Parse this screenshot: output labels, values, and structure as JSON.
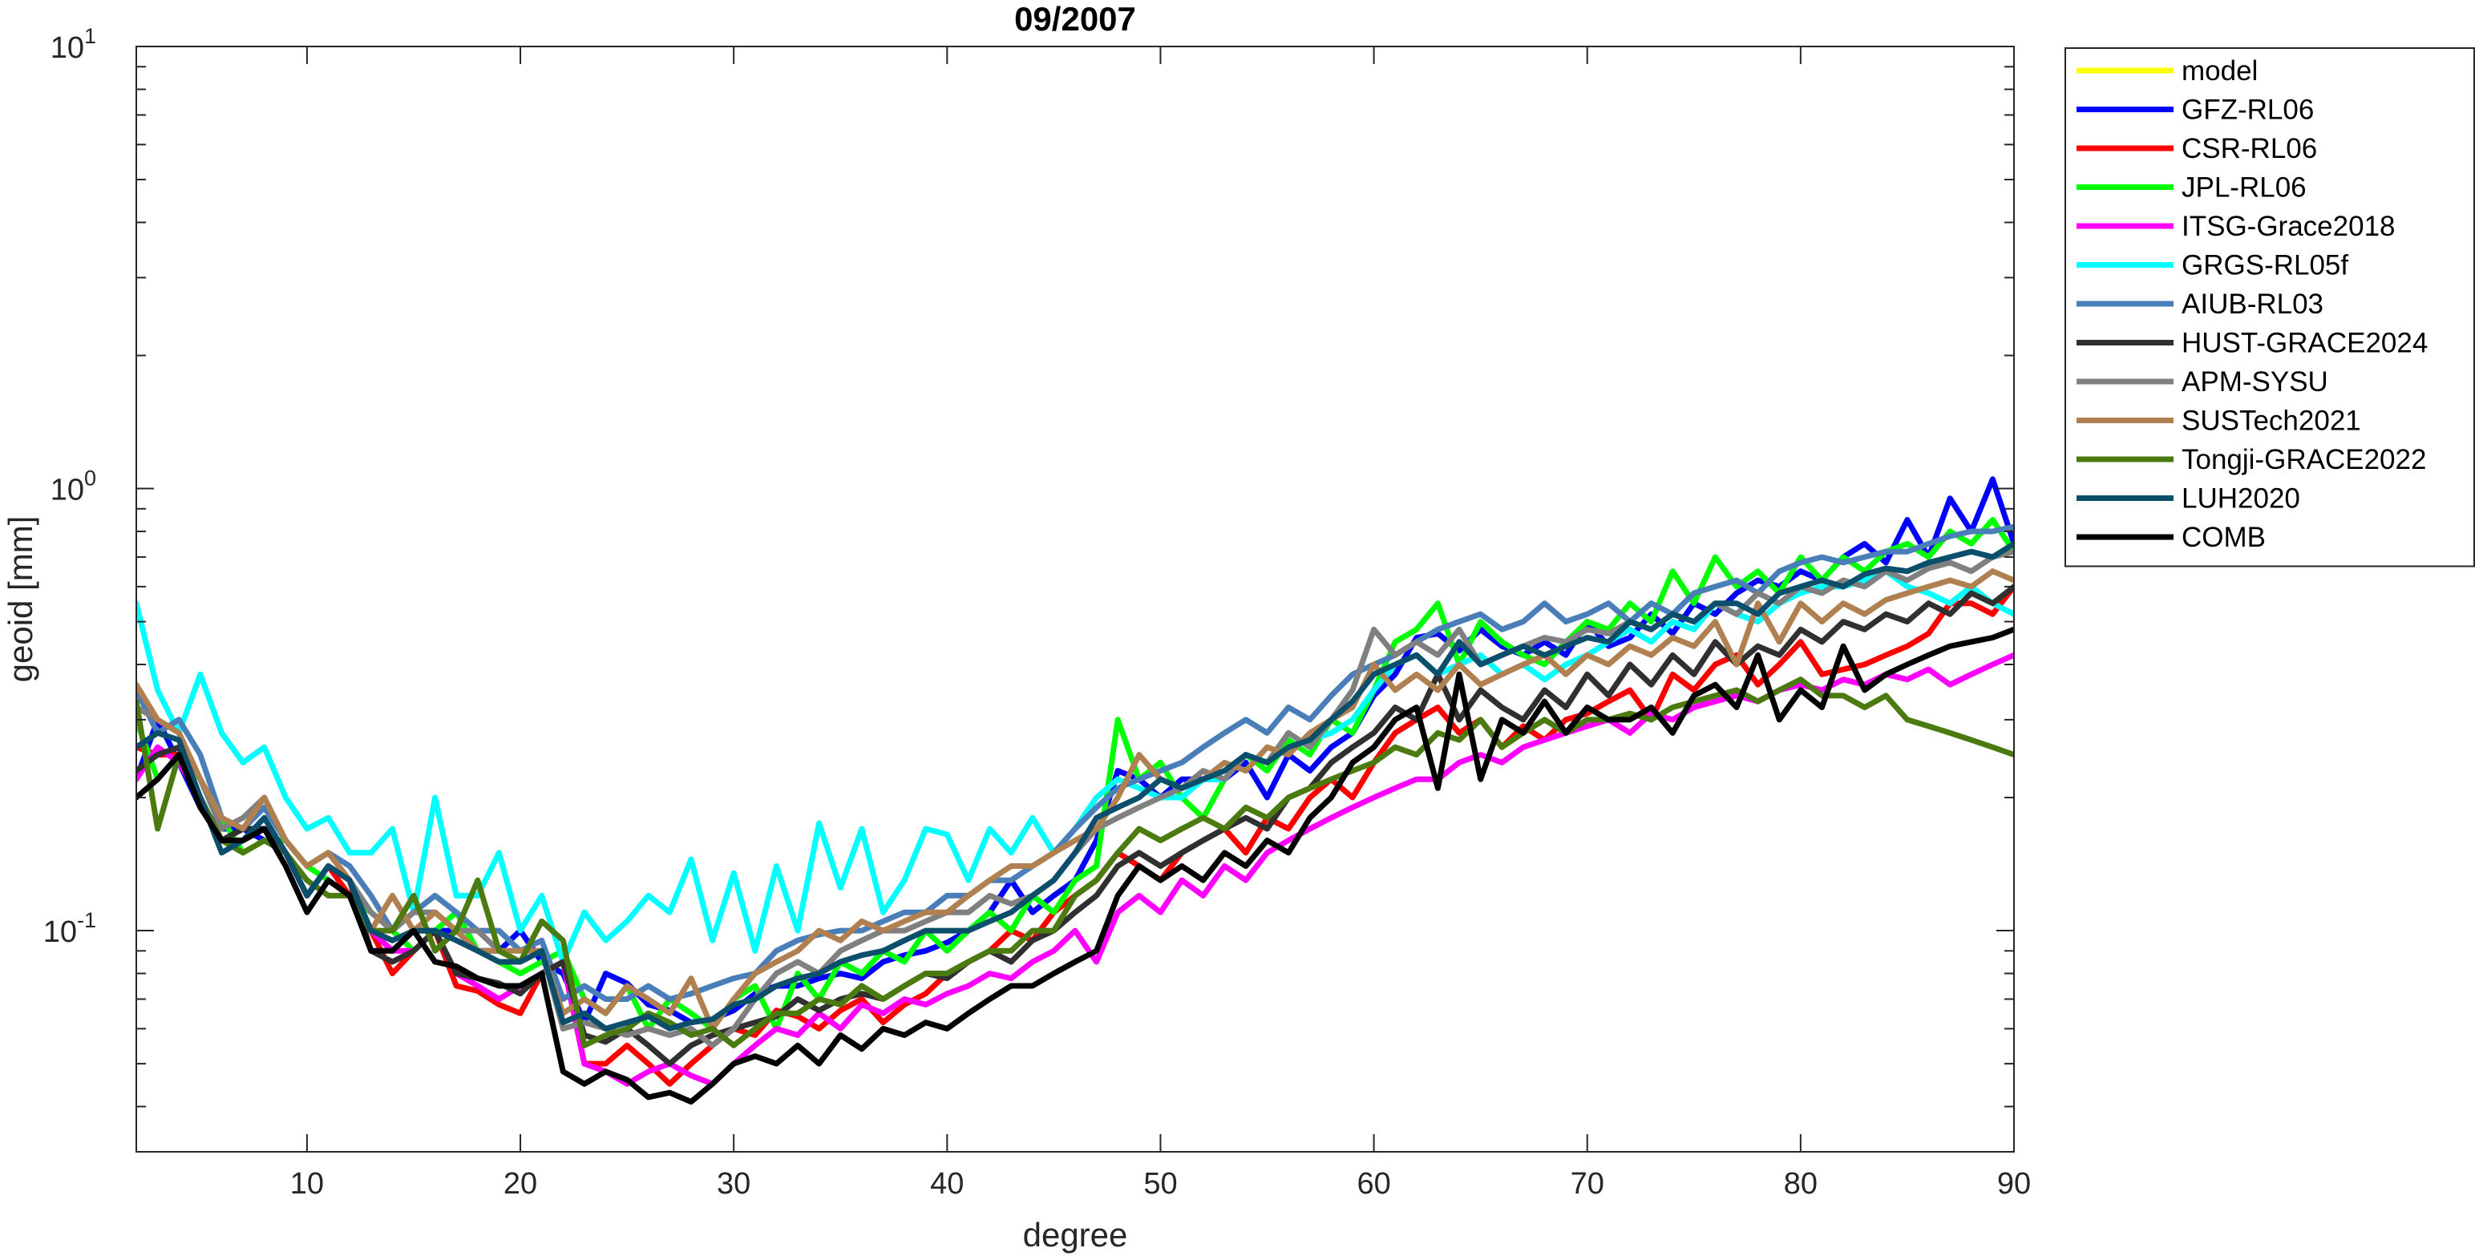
{
  "chart_data": {
    "type": "line",
    "title": "09/2007",
    "xlabel": "degree",
    "ylabel": "geoid [mm]",
    "xlim": [
      2,
      90
    ],
    "ylim": [
      0.0316,
      10
    ],
    "yscale": "log",
    "xticks": [
      10,
      20,
      30,
      40,
      50,
      60,
      70,
      80,
      90
    ],
    "yticks": [
      {
        "value": 0.1,
        "base": "10",
        "exp": "-1"
      },
      {
        "value": 1,
        "base": "10",
        "exp": "0"
      },
      {
        "value": 10,
        "base": "10",
        "exp": "1"
      }
    ],
    "grid": false,
    "legend_position": "outside-right-top",
    "x_start": 2,
    "series": [
      {
        "name": "model",
        "color": "#ffff00",
        "values": []
      },
      {
        "name": "GFZ-RL06",
        "color": "#0000ff",
        "values": [
          0.22,
          0.3,
          0.24,
          0.19,
          0.17,
          0.17,
          0.16,
          0.15,
          0.12,
          0.14,
          0.13,
          0.1,
          0.09,
          0.1,
          0.1,
          0.1,
          0.09,
          0.09,
          0.1,
          0.085,
          0.08,
          0.062,
          0.08,
          0.076,
          0.068,
          0.066,
          0.062,
          0.063,
          0.066,
          0.072,
          0.075,
          0.075,
          0.078,
          0.08,
          0.078,
          0.085,
          0.088,
          0.09,
          0.094,
          0.1,
          0.11,
          0.13,
          0.11,
          0.12,
          0.13,
          0.16,
          0.23,
          0.22,
          0.2,
          0.22,
          0.22,
          0.22,
          0.24,
          0.2,
          0.25,
          0.23,
          0.26,
          0.28,
          0.34,
          0.38,
          0.46,
          0.47,
          0.43,
          0.48,
          0.44,
          0.42,
          0.45,
          0.42,
          0.5,
          0.44,
          0.46,
          0.52,
          0.47,
          0.55,
          0.52,
          0.58,
          0.62,
          0.6,
          0.65,
          0.62,
          0.7,
          0.75,
          0.68,
          0.85,
          0.7,
          0.95,
          0.8,
          1.05,
          0.75,
          1.05,
          0.72
        ]
      },
      {
        "name": "CSR-RL06",
        "color": "#ff0000",
        "values": [
          0.26,
          0.25,
          0.25,
          0.2,
          0.16,
          0.16,
          0.17,
          0.15,
          0.12,
          0.14,
          0.12,
          0.1,
          0.08,
          0.09,
          0.1,
          0.075,
          0.073,
          0.068,
          0.065,
          0.08,
          0.085,
          0.05,
          0.05,
          0.055,
          0.05,
          0.045,
          0.05,
          0.055,
          0.06,
          0.058,
          0.066,
          0.064,
          0.06,
          0.066,
          0.07,
          0.062,
          0.068,
          0.072,
          0.08,
          0.085,
          0.09,
          0.1,
          0.095,
          0.11,
          0.12,
          0.13,
          0.15,
          0.14,
          0.13,
          0.15,
          0.16,
          0.17,
          0.15,
          0.18,
          0.17,
          0.2,
          0.22,
          0.2,
          0.24,
          0.28,
          0.3,
          0.32,
          0.28,
          0.3,
          0.26,
          0.29,
          0.27,
          0.3,
          0.31,
          0.33,
          0.35,
          0.3,
          0.38,
          0.35,
          0.4,
          0.42,
          0.36,
          0.4,
          0.45,
          0.38,
          0.39,
          0.4,
          0.42,
          0.44,
          0.47,
          0.55,
          0.55,
          0.52,
          0.6,
          0.62,
          0.7
        ]
      },
      {
        "name": "JPL-RL06",
        "color": "#00ff00",
        "values": [
          0.3,
          0.22,
          0.25,
          0.22,
          0.18,
          0.15,
          0.16,
          0.16,
          0.14,
          0.13,
          0.12,
          0.11,
          0.1,
          0.09,
          0.1,
          0.11,
          0.09,
          0.085,
          0.08,
          0.085,
          0.09,
          0.07,
          0.065,
          0.075,
          0.06,
          0.07,
          0.065,
          0.06,
          0.07,
          0.075,
          0.06,
          0.08,
          0.07,
          0.085,
          0.08,
          0.09,
          0.085,
          0.1,
          0.09,
          0.1,
          0.11,
          0.1,
          0.12,
          0.11,
          0.13,
          0.14,
          0.3,
          0.22,
          0.24,
          0.2,
          0.18,
          0.22,
          0.25,
          0.23,
          0.27,
          0.25,
          0.3,
          0.28,
          0.35,
          0.45,
          0.48,
          0.55,
          0.4,
          0.5,
          0.45,
          0.42,
          0.4,
          0.45,
          0.5,
          0.48,
          0.55,
          0.5,
          0.65,
          0.55,
          0.7,
          0.6,
          0.65,
          0.58,
          0.7,
          0.62,
          0.7,
          0.65,
          0.72,
          0.75,
          0.7,
          0.8,
          0.75,
          0.85,
          0.72,
          0.82,
          0.85
        ]
      },
      {
        "name": "ITSG-Grace2018",
        "color": "#ff00ff",
        "values": [
          0.22,
          0.26,
          0.24,
          0.2,
          0.16,
          0.17,
          0.17,
          0.15,
          0.12,
          0.14,
          0.13,
          0.1,
          0.09,
          0.09,
          0.1,
          0.08,
          0.075,
          0.07,
          0.075,
          0.08,
          0.085,
          0.05,
          0.048,
          0.045,
          0.048,
          0.05,
          0.047,
          0.045,
          0.05,
          0.055,
          0.06,
          0.058,
          0.065,
          0.06,
          0.068,
          0.065,
          0.07,
          0.068,
          0.072,
          0.075,
          0.08,
          0.078,
          0.085,
          0.09,
          0.1,
          0.085,
          0.11,
          0.12,
          0.11,
          0.13,
          0.12,
          0.14,
          0.13,
          0.15,
          0.16,
          0.17,
          0.18,
          0.19,
          0.2,
          0.21,
          0.22,
          0.22,
          0.24,
          0.25,
          0.24,
          0.26,
          0.27,
          0.28,
          0.29,
          0.3,
          0.28,
          0.31,
          0.3,
          0.32,
          0.33,
          0.34,
          0.33,
          0.35,
          0.36,
          0.35,
          0.37,
          0.36,
          0.38,
          0.37,
          0.39,
          0.36,
          0.38,
          0.4,
          0.42,
          0.41,
          0.43
        ]
      },
      {
        "name": "GRGS-RL05f",
        "color": "#00ffff",
        "values": [
          0.55,
          0.35,
          0.28,
          0.38,
          0.28,
          0.24,
          0.26,
          0.2,
          0.17,
          0.18,
          0.15,
          0.15,
          0.17,
          0.11,
          0.2,
          0.12,
          0.12,
          0.15,
          0.1,
          0.12,
          0.085,
          0.11,
          0.095,
          0.105,
          0.12,
          0.11,
          0.145,
          0.095,
          0.135,
          0.09,
          0.14,
          0.1,
          0.175,
          0.125,
          0.17,
          0.11,
          0.13,
          0.17,
          0.165,
          0.13,
          0.17,
          0.15,
          0.18,
          0.15,
          0.17,
          0.2,
          0.22,
          0.21,
          0.2,
          0.2,
          0.22,
          0.22,
          0.25,
          0.24,
          0.26,
          0.27,
          0.28,
          0.3,
          0.35,
          0.4,
          0.42,
          0.38,
          0.4,
          0.42,
          0.38,
          0.4,
          0.37,
          0.4,
          0.42,
          0.45,
          0.48,
          0.45,
          0.5,
          0.48,
          0.55,
          0.52,
          0.5,
          0.55,
          0.58,
          0.6,
          0.6,
          0.62,
          0.65,
          0.6,
          0.58,
          0.55,
          0.6,
          0.55,
          0.52,
          0.55,
          0.5
        ]
      },
      {
        "name": "AIUB-RL03",
        "color": "#4a7eb8",
        "values": [
          0.35,
          0.28,
          0.3,
          0.25,
          0.18,
          0.17,
          0.19,
          0.16,
          0.14,
          0.15,
          0.14,
          0.12,
          0.1,
          0.11,
          0.12,
          0.11,
          0.1,
          0.1,
          0.09,
          0.095,
          0.07,
          0.075,
          0.07,
          0.07,
          0.075,
          0.07,
          0.072,
          0.075,
          0.078,
          0.08,
          0.09,
          0.095,
          0.098,
          0.1,
          0.1,
          0.105,
          0.11,
          0.11,
          0.12,
          0.12,
          0.13,
          0.13,
          0.14,
          0.15,
          0.17,
          0.19,
          0.21,
          0.22,
          0.23,
          0.24,
          0.26,
          0.28,
          0.3,
          0.28,
          0.32,
          0.3,
          0.34,
          0.38,
          0.4,
          0.42,
          0.45,
          0.48,
          0.5,
          0.52,
          0.48,
          0.5,
          0.55,
          0.5,
          0.52,
          0.55,
          0.5,
          0.55,
          0.52,
          0.58,
          0.6,
          0.62,
          0.58,
          0.65,
          0.68,
          0.7,
          0.68,
          0.7,
          0.72,
          0.72,
          0.75,
          0.78,
          0.8,
          0.8,
          0.82,
          0.75,
          0.7
        ]
      },
      {
        "name": "HUST-GRACE2024",
        "color": "#303030",
        "values": [
          0.23,
          0.25,
          0.26,
          0.2,
          0.16,
          0.17,
          0.17,
          0.15,
          0.12,
          0.14,
          0.13,
          0.09,
          0.085,
          0.09,
          0.1,
          0.08,
          0.078,
          0.076,
          0.072,
          0.08,
          0.085,
          0.058,
          0.056,
          0.06,
          0.055,
          0.05,
          0.055,
          0.058,
          0.06,
          0.062,
          0.064,
          0.07,
          0.066,
          0.07,
          0.072,
          0.07,
          0.075,
          0.08,
          0.078,
          0.085,
          0.09,
          0.085,
          0.095,
          0.1,
          0.11,
          0.12,
          0.14,
          0.15,
          0.14,
          0.15,
          0.16,
          0.17,
          0.18,
          0.17,
          0.2,
          0.21,
          0.24,
          0.26,
          0.28,
          0.32,
          0.3,
          0.38,
          0.3,
          0.35,
          0.32,
          0.3,
          0.35,
          0.32,
          0.38,
          0.34,
          0.4,
          0.36,
          0.42,
          0.38,
          0.45,
          0.4,
          0.44,
          0.42,
          0.48,
          0.45,
          0.5,
          0.48,
          0.52,
          0.5,
          0.55,
          0.52,
          0.58,
          0.55,
          0.6,
          0.62,
          0.64
        ]
      },
      {
        "name": "APM-SYSU",
        "color": "#808080",
        "values": [
          0.32,
          0.3,
          0.28,
          0.22,
          0.17,
          0.18,
          0.2,
          0.16,
          0.14,
          0.15,
          0.13,
          0.11,
          0.1,
          0.11,
          0.11,
          0.1,
          0.1,
          0.09,
          0.085,
          0.09,
          0.06,
          0.062,
          0.06,
          0.058,
          0.06,
          0.058,
          0.06,
          0.055,
          0.06,
          0.07,
          0.08,
          0.085,
          0.08,
          0.09,
          0.095,
          0.1,
          0.1,
          0.105,
          0.11,
          0.11,
          0.12,
          0.115,
          0.12,
          0.13,
          0.15,
          0.17,
          0.18,
          0.19,
          0.2,
          0.21,
          0.23,
          0.22,
          0.25,
          0.24,
          0.28,
          0.26,
          0.3,
          0.35,
          0.48,
          0.42,
          0.45,
          0.42,
          0.48,
          0.4,
          0.42,
          0.44,
          0.46,
          0.45,
          0.48,
          0.47,
          0.5,
          0.48,
          0.52,
          0.5,
          0.55,
          0.52,
          0.58,
          0.55,
          0.6,
          0.58,
          0.62,
          0.6,
          0.65,
          0.62,
          0.66,
          0.68,
          0.65,
          0.7,
          0.72,
          0.74,
          0.76
        ]
      },
      {
        "name": "SUSTech2021",
        "color": "#b08050",
        "values": [
          0.36,
          0.3,
          0.28,
          0.22,
          0.18,
          0.17,
          0.2,
          0.16,
          0.14,
          0.15,
          0.13,
          0.1,
          0.12,
          0.1,
          0.11,
          0.1,
          0.09,
          0.09,
          0.09,
          0.09,
          0.065,
          0.07,
          0.065,
          0.075,
          0.07,
          0.065,
          0.078,
          0.06,
          0.07,
          0.08,
          0.085,
          0.09,
          0.1,
          0.095,
          0.105,
          0.1,
          0.105,
          0.11,
          0.11,
          0.12,
          0.13,
          0.14,
          0.14,
          0.15,
          0.16,
          0.17,
          0.2,
          0.25,
          0.22,
          0.21,
          0.22,
          0.24,
          0.23,
          0.26,
          0.25,
          0.28,
          0.3,
          0.32,
          0.4,
          0.35,
          0.38,
          0.35,
          0.4,
          0.36,
          0.38,
          0.4,
          0.42,
          0.38,
          0.42,
          0.4,
          0.44,
          0.42,
          0.46,
          0.44,
          0.5,
          0.4,
          0.55,
          0.45,
          0.55,
          0.5,
          0.55,
          0.52,
          0.56,
          0.58,
          0.6,
          0.62,
          0.6,
          0.65,
          0.62,
          0.64,
          0.66
        ]
      },
      {
        "name": "Tongji-GRACE2022",
        "color": "#4a7a10",
        "values": [
          0.33,
          0.17,
          0.25,
          0.2,
          0.16,
          0.15,
          0.16,
          0.15,
          0.13,
          0.12,
          0.12,
          0.1,
          0.1,
          0.12,
          0.09,
          0.1,
          0.13,
          0.09,
          0.085,
          0.105,
          0.095,
          0.055,
          0.058,
          0.06,
          0.065,
          0.062,
          0.058,
          0.06,
          0.055,
          0.06,
          0.065,
          0.065,
          0.07,
          0.068,
          0.075,
          0.07,
          0.075,
          0.08,
          0.08,
          0.085,
          0.09,
          0.09,
          0.1,
          0.1,
          0.12,
          0.13,
          0.15,
          0.17,
          0.16,
          0.17,
          0.18,
          0.17,
          0.19,
          0.18,
          0.2,
          0.21,
          0.22,
          0.23,
          0.24,
          0.26,
          0.25,
          0.28,
          0.27,
          0.3,
          0.26,
          0.28,
          0.3,
          0.28,
          0.3,
          0.3,
          0.31,
          0.3,
          0.32,
          0.33,
          0.34,
          0.35,
          0.33,
          0.35,
          0.37,
          0.34,
          0.34,
          0.32,
          0.34,
          0.3,
          0.29,
          0.28,
          0.27,
          0.26,
          0.25,
          0.24,
          0.25
        ]
      },
      {
        "name": "LUH2020",
        "color": "#0b4f6c",
        "values": [
          0.26,
          0.28,
          0.27,
          0.2,
          0.15,
          0.16,
          0.18,
          0.15,
          0.12,
          0.14,
          0.13,
          0.1,
          0.095,
          0.1,
          0.1,
          0.095,
          0.09,
          0.085,
          0.085,
          0.09,
          0.062,
          0.065,
          0.06,
          0.062,
          0.064,
          0.06,
          0.062,
          0.063,
          0.068,
          0.07,
          0.075,
          0.078,
          0.08,
          0.085,
          0.088,
          0.09,
          0.095,
          0.1,
          0.1,
          0.1,
          0.105,
          0.11,
          0.12,
          0.13,
          0.15,
          0.18,
          0.19,
          0.2,
          0.22,
          0.21,
          0.22,
          0.23,
          0.25,
          0.24,
          0.26,
          0.27,
          0.3,
          0.33,
          0.38,
          0.4,
          0.42,
          0.38,
          0.45,
          0.4,
          0.42,
          0.44,
          0.42,
          0.44,
          0.46,
          0.45,
          0.5,
          0.48,
          0.52,
          0.5,
          0.55,
          0.55,
          0.52,
          0.58,
          0.6,
          0.62,
          0.6,
          0.64,
          0.66,
          0.65,
          0.68,
          0.7,
          0.72,
          0.7,
          0.75,
          0.72,
          0.7
        ]
      },
      {
        "name": "COMB",
        "color": "#000000",
        "values": [
          0.2,
          0.22,
          0.25,
          0.19,
          0.16,
          0.16,
          0.17,
          0.14,
          0.11,
          0.13,
          0.12,
          0.09,
          0.09,
          0.1,
          0.085,
          0.083,
          0.078,
          0.075,
          0.075,
          0.08,
          0.048,
          0.045,
          0.048,
          0.046,
          0.042,
          0.043,
          0.041,
          0.045,
          0.05,
          0.052,
          0.05,
          0.055,
          0.05,
          0.058,
          0.054,
          0.06,
          0.058,
          0.062,
          0.06,
          0.065,
          0.07,
          0.075,
          0.075,
          0.08,
          0.085,
          0.09,
          0.12,
          0.14,
          0.13,
          0.14,
          0.13,
          0.15,
          0.14,
          0.16,
          0.15,
          0.18,
          0.2,
          0.24,
          0.26,
          0.3,
          0.32,
          0.21,
          0.38,
          0.22,
          0.3,
          0.28,
          0.33,
          0.28,
          0.32,
          0.3,
          0.3,
          0.32,
          0.28,
          0.34,
          0.36,
          0.32,
          0.42,
          0.3,
          0.35,
          0.32,
          0.44,
          0.35,
          0.38,
          0.4,
          0.42,
          0.44,
          0.45,
          0.46,
          0.48,
          0.42,
          0.47
        ]
      }
    ]
  }
}
